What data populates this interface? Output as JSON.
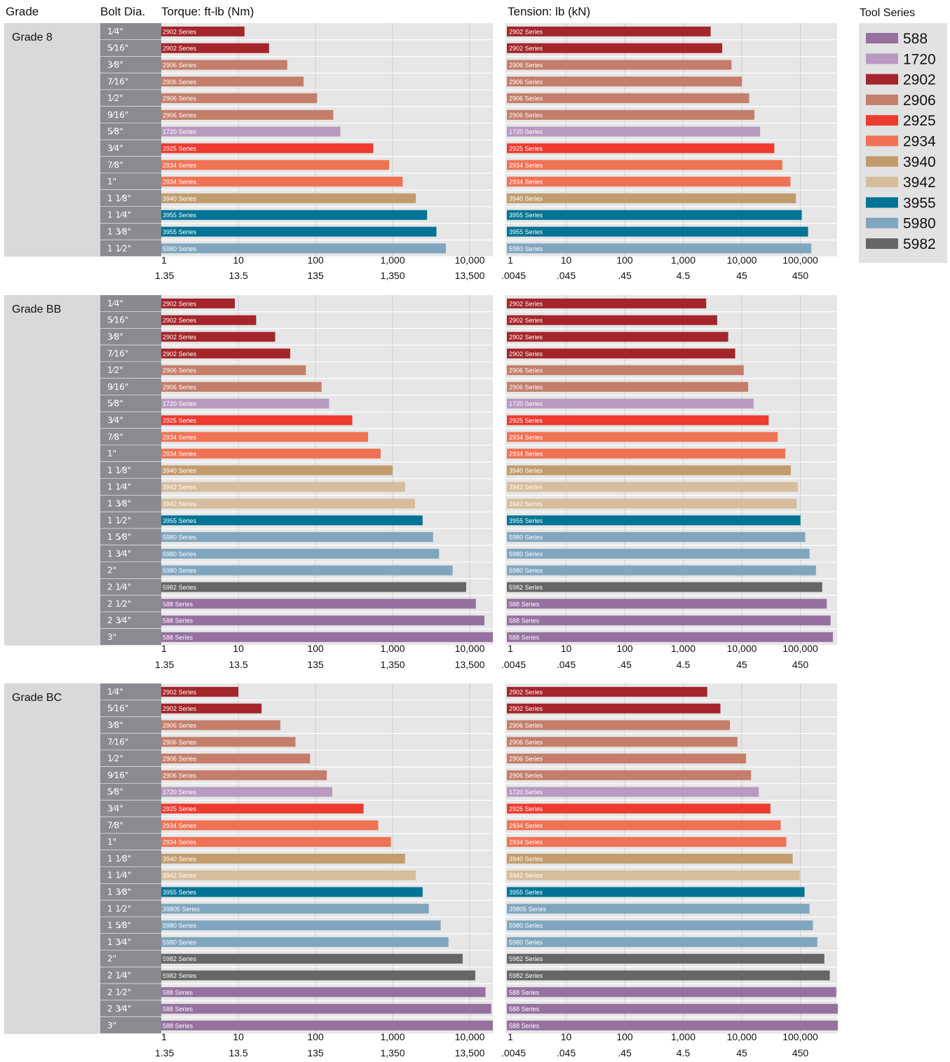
{
  "headers": {
    "grade": "Grade",
    "bolt_dia": "Bolt Dia.",
    "torque": "Torque: ft-lb (Nm)",
    "tension": "Tension: lb (kN)",
    "tool_series": "Tool Series"
  },
  "colors": {
    "588": "#9671a0",
    "1720": "#b89ac0",
    "2902": "#a4252a",
    "2906": "#c47e6a",
    "2925": "#ee3a2f",
    "2934": "#f07254",
    "3940": "#c39c6e",
    "3942": "#d6bd9b",
    "3955": "#007495",
    "5980": "#80a6bf",
    "5982": "#666666",
    "39805": "#80a6bf"
  },
  "legend": [
    "588",
    "1720",
    "2902",
    "2906",
    "2925",
    "2934",
    "3940",
    "3942",
    "3955",
    "5980",
    "5982"
  ],
  "chart_data": [
    {
      "type": "bar",
      "grade": "Grade 8",
      "categories": [
        "1⁄4\"",
        "5⁄16\"",
        "3⁄8\"",
        "7⁄16\"",
        "1⁄2\"",
        "9⁄16\"",
        "5⁄8\"",
        "3⁄4\"",
        "7⁄8\"",
        "1\"",
        "1 1⁄8\"",
        "1 1⁄4\"",
        "1 3⁄8\"",
        "1 1⁄2\""
      ],
      "series_labels": [
        "2902 Series",
        "2902 Series",
        "2906 Series",
        "2906 Series",
        "2906 Series",
        "2906 Series",
        "1720 Series",
        "2925 Series",
        "2934 Series",
        "2934 Series",
        "3940 Series",
        "3955 Series",
        "3955 Series",
        "5980 Series"
      ],
      "torque_ftlb": [
        12,
        25,
        43,
        70,
        105,
        170,
        210,
        560,
        900,
        1350,
        2000,
        2800,
        3700,
        4900
      ],
      "tension_lb": [
        2860,
        4500,
        6500,
        9800,
        13000,
        16000,
        20000,
        35000,
        48000,
        66000,
        82000,
        103000,
        132000,
        150000
      ],
      "torque_axis": {
        "ticks": [
          "1",
          "10",
          "100",
          "1,000",
          "10,000"
        ],
        "secondary": [
          "1.35",
          "13.5",
          "135",
          "1,350",
          "13,500"
        ],
        "scale": "log"
      },
      "tension_axis": {
        "ticks": [
          "1",
          "10",
          "100",
          "1,000",
          "10,000",
          "100,000"
        ],
        "secondary": [
          ".0045",
          ".045",
          ".45",
          "4.5",
          "45",
          "450"
        ],
        "scale": "log"
      }
    },
    {
      "type": "bar",
      "grade": "Grade BB",
      "categories": [
        "1⁄4\"",
        "5⁄16\"",
        "3⁄8\"",
        "7⁄16\"",
        "1⁄2\"",
        "9⁄16\"",
        "5⁄8\"",
        "3⁄4\"",
        "7⁄8\"",
        "1\"",
        "1 1⁄8\"",
        "1 1⁄4\"",
        "1 3⁄8\"",
        "1 1⁄2\"",
        "1 5⁄8\"",
        "1 3⁄4\"",
        "2\"",
        "2 1⁄4\"",
        "2 1⁄2\"",
        "2 3⁄4\"",
        "3\""
      ],
      "series_labels": [
        "2902 Series",
        "2902 Series",
        "2902 Series",
        "2902 Series",
        "2906 Series",
        "2906 Series",
        "1720 Series",
        "2925 Series",
        "2934 Series",
        "2934 Series",
        "3940 Series",
        "3942 Series",
        "3942 Series",
        "3955 Series",
        "5980 Series",
        "5980 Series",
        "5980 Series",
        "5982 Series",
        "588 Series",
        "588 Series",
        "588 Series"
      ],
      "torque_ftlb": [
        9,
        17,
        30,
        47,
        75,
        120,
        150,
        300,
        480,
        700,
        1000,
        1450,
        1950,
        2450,
        3350,
        4000,
        6000,
        9000,
        12000,
        15500,
        20000
      ],
      "tension_lb": [
        2400,
        3700,
        5700,
        7500,
        10500,
        12500,
        15500,
        28000,
        40000,
        54000,
        67000,
        88000,
        84000,
        98000,
        118000,
        140000,
        180000,
        230000,
        275000,
        320000,
        350000
      ],
      "torque_axis": {
        "ticks": [
          "1",
          "10",
          "100",
          "1,000",
          "10,000"
        ],
        "secondary": [
          "1.35",
          "13.5",
          "135",
          "1,350",
          "13,500"
        ],
        "scale": "log"
      },
      "tension_axis": {
        "ticks": [
          "1",
          "10",
          "100",
          "1,000",
          "10,000",
          "100,000"
        ],
        "secondary": [
          ".0045",
          ".045",
          ".45",
          "4.5",
          "45",
          "450"
        ],
        "scale": "log"
      }
    },
    {
      "type": "bar",
      "grade": "Grade BC",
      "categories": [
        "1⁄4\"",
        "5⁄16\"",
        "3⁄8\"",
        "7⁄16\"",
        "1⁄2\"",
        "9⁄16\"",
        "5⁄8\"",
        "3⁄4\"",
        "7⁄8\"",
        "1\"",
        "1 1⁄8\"",
        "1 1⁄4\"",
        "1 3⁄8\"",
        "1 1⁄2\"",
        "1 5⁄8\"",
        "1 3⁄4\"",
        "2\"",
        "2 1⁄4\"",
        "2 1⁄2\"",
        "2 3⁄4\"",
        "3\""
      ],
      "series_labels": [
        "2902 Series",
        "2902 Series",
        "2906 Series",
        "2906 Series",
        "2906 Series",
        "2906 Series",
        "1720 Series",
        "2925 Series",
        "2934 Series",
        "2934 Series",
        "3940 Series",
        "3942 Series",
        "3955 Series",
        "39805 Series",
        "5980 Series",
        "5980 Series",
        "5982 Series",
        "5982 Series",
        "588 Series",
        "588 Series",
        "588 Series"
      ],
      "torque_ftlb": [
        10,
        20,
        35,
        55,
        85,
        140,
        165,
        420,
        650,
        950,
        1450,
        2000,
        2450,
        2950,
        4200,
        5300,
        8100,
        11800,
        16000,
        19000,
        24000
      ],
      "tension_lb": [
        2500,
        4200,
        6100,
        8200,
        11500,
        14000,
        19000,
        30000,
        45000,
        56000,
        72000,
        95000,
        115000,
        140000,
        160000,
        190000,
        250000,
        310000,
        400000,
        450000,
        550000
      ],
      "torque_axis": {
        "ticks": [
          "1",
          "10",
          "100",
          "1,000",
          "10,000"
        ],
        "secondary": [
          "1.35",
          "13.5",
          "135",
          "1,350",
          "13,500"
        ],
        "scale": "log"
      },
      "tension_axis": {
        "ticks": [
          "1",
          "10",
          "100",
          "1,000",
          "10,000",
          "100,000"
        ],
        "secondary": [
          ".0045",
          ".045",
          ".45",
          "4.5",
          "45",
          "450"
        ],
        "scale": "log"
      }
    }
  ]
}
